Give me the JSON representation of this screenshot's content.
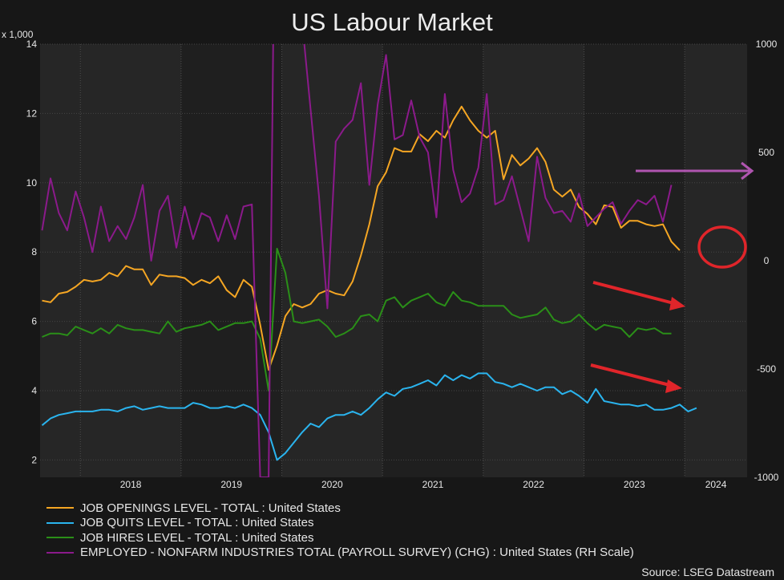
{
  "chart_data": {
    "type": "line",
    "title": "US Labour Market",
    "left_axis_unit": "x 1,000",
    "left_ylim": [
      1.5,
      14
    ],
    "left_ticks": [
      2,
      4,
      6,
      8,
      10,
      12,
      14
    ],
    "right_ylim": [
      -1000,
      1000
    ],
    "right_ticks": [
      -1000,
      -500,
      0,
      500,
      1000
    ],
    "x_start": 2017.6,
    "x_end": 2024.62,
    "year_labels": [
      "2018",
      "2019",
      "2020",
      "2021",
      "2022",
      "2023",
      "2024"
    ],
    "grid": true,
    "legend_position": "bottom",
    "source": "Source: LSEG Datastream",
    "series": [
      {
        "name": "JOB OPENINGS LEVEL - TOTAL : United States",
        "color": "#f5a623",
        "axis": "left",
        "start": 2017.62,
        "step": 0.0833,
        "values": [
          6.6,
          6.55,
          6.8,
          6.85,
          7.0,
          7.2,
          7.15,
          7.2,
          7.4,
          7.3,
          7.6,
          7.5,
          7.5,
          7.05,
          7.35,
          7.3,
          7.3,
          7.25,
          7.05,
          7.2,
          7.1,
          7.3,
          6.9,
          6.7,
          7.2,
          7.0,
          5.9,
          4.6,
          5.3,
          6.15,
          6.5,
          6.4,
          6.5,
          6.8,
          6.9,
          6.8,
          6.75,
          7.15,
          7.9,
          8.8,
          9.9,
          10.3,
          11.0,
          10.9,
          10.9,
          11.4,
          11.2,
          11.5,
          11.3,
          11.8,
          12.2,
          11.8,
          11.5,
          11.3,
          11.5,
          10.1,
          10.8,
          10.5,
          10.7,
          11.0,
          10.6,
          9.8,
          9.6,
          9.8,
          9.3,
          9.1,
          8.8,
          9.35,
          9.3,
          8.7,
          8.9,
          8.9,
          8.8,
          8.75,
          8.8,
          8.3,
          8.05
        ]
      },
      {
        "name": "JOB QUITS LEVEL - TOTAL : United States",
        "color": "#2ab4ee",
        "axis": "left",
        "start": 2017.62,
        "step": 0.0833,
        "values": [
          3.0,
          3.2,
          3.3,
          3.35,
          3.4,
          3.4,
          3.4,
          3.45,
          3.45,
          3.4,
          3.5,
          3.55,
          3.45,
          3.5,
          3.55,
          3.5,
          3.5,
          3.5,
          3.65,
          3.6,
          3.5,
          3.5,
          3.55,
          3.5,
          3.6,
          3.5,
          3.3,
          2.8,
          2.0,
          2.2,
          2.5,
          2.8,
          3.05,
          2.95,
          3.2,
          3.3,
          3.3,
          3.4,
          3.3,
          3.5,
          3.75,
          3.95,
          3.85,
          4.05,
          4.1,
          4.2,
          4.3,
          4.15,
          4.45,
          4.3,
          4.45,
          4.35,
          4.5,
          4.5,
          4.25,
          4.2,
          4.1,
          4.2,
          4.1,
          4.0,
          4.1,
          4.1,
          3.9,
          4.0,
          3.85,
          3.65,
          4.05,
          3.7,
          3.65,
          3.6,
          3.6,
          3.55,
          3.6,
          3.45,
          3.45,
          3.5,
          3.6,
          3.4,
          3.5
        ]
      },
      {
        "name": "JOB HIRES LEVEL - TOTAL : United States",
        "color": "#2a8f18",
        "axis": "left",
        "start": 2017.62,
        "step": 0.0833,
        "values": [
          5.55,
          5.65,
          5.65,
          5.6,
          5.85,
          5.75,
          5.65,
          5.8,
          5.65,
          5.9,
          5.8,
          5.75,
          5.75,
          5.7,
          5.65,
          6.0,
          5.7,
          5.8,
          5.85,
          5.9,
          6.0,
          5.75,
          5.85,
          5.95,
          5.95,
          6.0,
          5.5,
          4.0,
          8.1,
          7.4,
          6.0,
          5.95,
          6.0,
          6.05,
          5.85,
          5.55,
          5.65,
          5.8,
          6.15,
          6.2,
          6.0,
          6.6,
          6.7,
          6.4,
          6.6,
          6.7,
          6.8,
          6.55,
          6.45,
          6.85,
          6.6,
          6.55,
          6.45,
          6.45,
          6.45,
          6.45,
          6.2,
          6.1,
          6.15,
          6.2,
          6.4,
          6.05,
          5.95,
          6.0,
          6.2,
          5.95,
          5.75,
          5.9,
          5.85,
          5.8,
          5.55,
          5.8,
          5.75,
          5.8,
          5.65,
          5.65
        ]
      },
      {
        "name": "EMPLOYED - NONFARM INDUSTRIES TOTAL (PAYROLL SURVEY) (CHG) : United States (RH Scale)",
        "color": "#8b1a8b",
        "axis": "right",
        "start": 2017.62,
        "step": 0.0833,
        "values": [
          140,
          380,
          220,
          140,
          320,
          200,
          40,
          250,
          90,
          160,
          100,
          200,
          350,
          0,
          230,
          300,
          60,
          250,
          100,
          220,
          200,
          90,
          210,
          100,
          250,
          260,
          -1000,
          -1000,
          2700,
          4800,
          1400,
          1100,
          700,
          300,
          -220,
          550,
          610,
          650,
          820,
          350,
          720,
          950,
          560,
          580,
          740,
          570,
          500,
          200,
          770,
          420,
          270,
          310,
          430,
          770,
          260,
          280,
          390,
          240,
          90,
          480,
          290,
          220,
          230,
          180,
          310,
          160,
          200,
          240,
          270,
          170,
          230,
          280,
          260,
          300,
          180,
          350
        ]
      }
    ],
    "annotations": [
      "purple arrow pointing right",
      "red arrow pointing down-right near hires",
      "red arrow pointing down-right near quits",
      "red circle around last openings value"
    ]
  }
}
